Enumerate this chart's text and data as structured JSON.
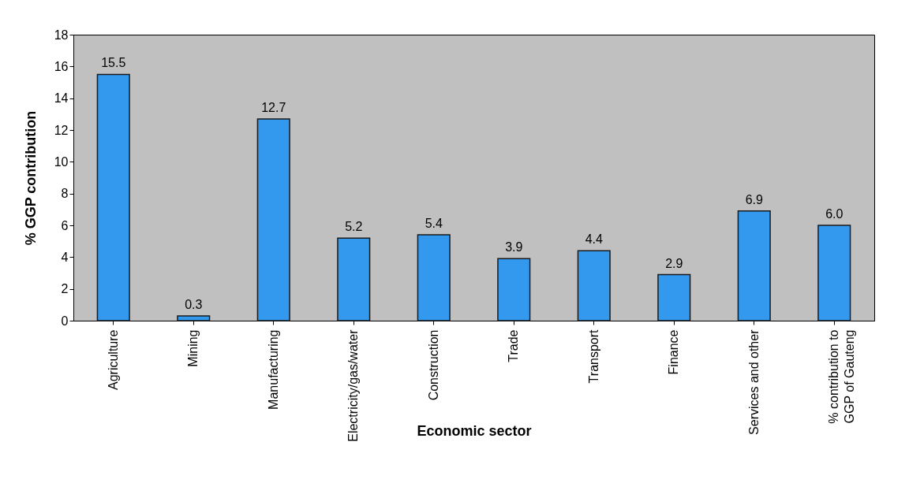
{
  "chart_data": {
    "type": "bar",
    "xlabel": "Economic sector",
    "ylabel": "% GGP contribution",
    "categories": [
      "Agriculture",
      "Mining",
      "Manufacturing",
      "Electricity/gas/water",
      "Construction",
      "Trade",
      "Transport",
      "Finance",
      "Services and other",
      "% contribution to\nGGP of Gauteng"
    ],
    "values": [
      15.5,
      0.3,
      12.7,
      5.2,
      5.4,
      3.9,
      4.4,
      2.9,
      6.9,
      6.0
    ],
    "value_labels": [
      "15.5",
      "0.3",
      "12.7",
      "5.2",
      "5.4",
      "3.9",
      "4.4",
      "2.9",
      "6.9",
      "6.0"
    ],
    "color": "#3399ee",
    "ylim": [
      0,
      18
    ],
    "yticks": [
      0,
      2,
      4,
      6,
      8,
      10,
      12,
      14,
      16,
      18
    ],
    "grid": false
  }
}
